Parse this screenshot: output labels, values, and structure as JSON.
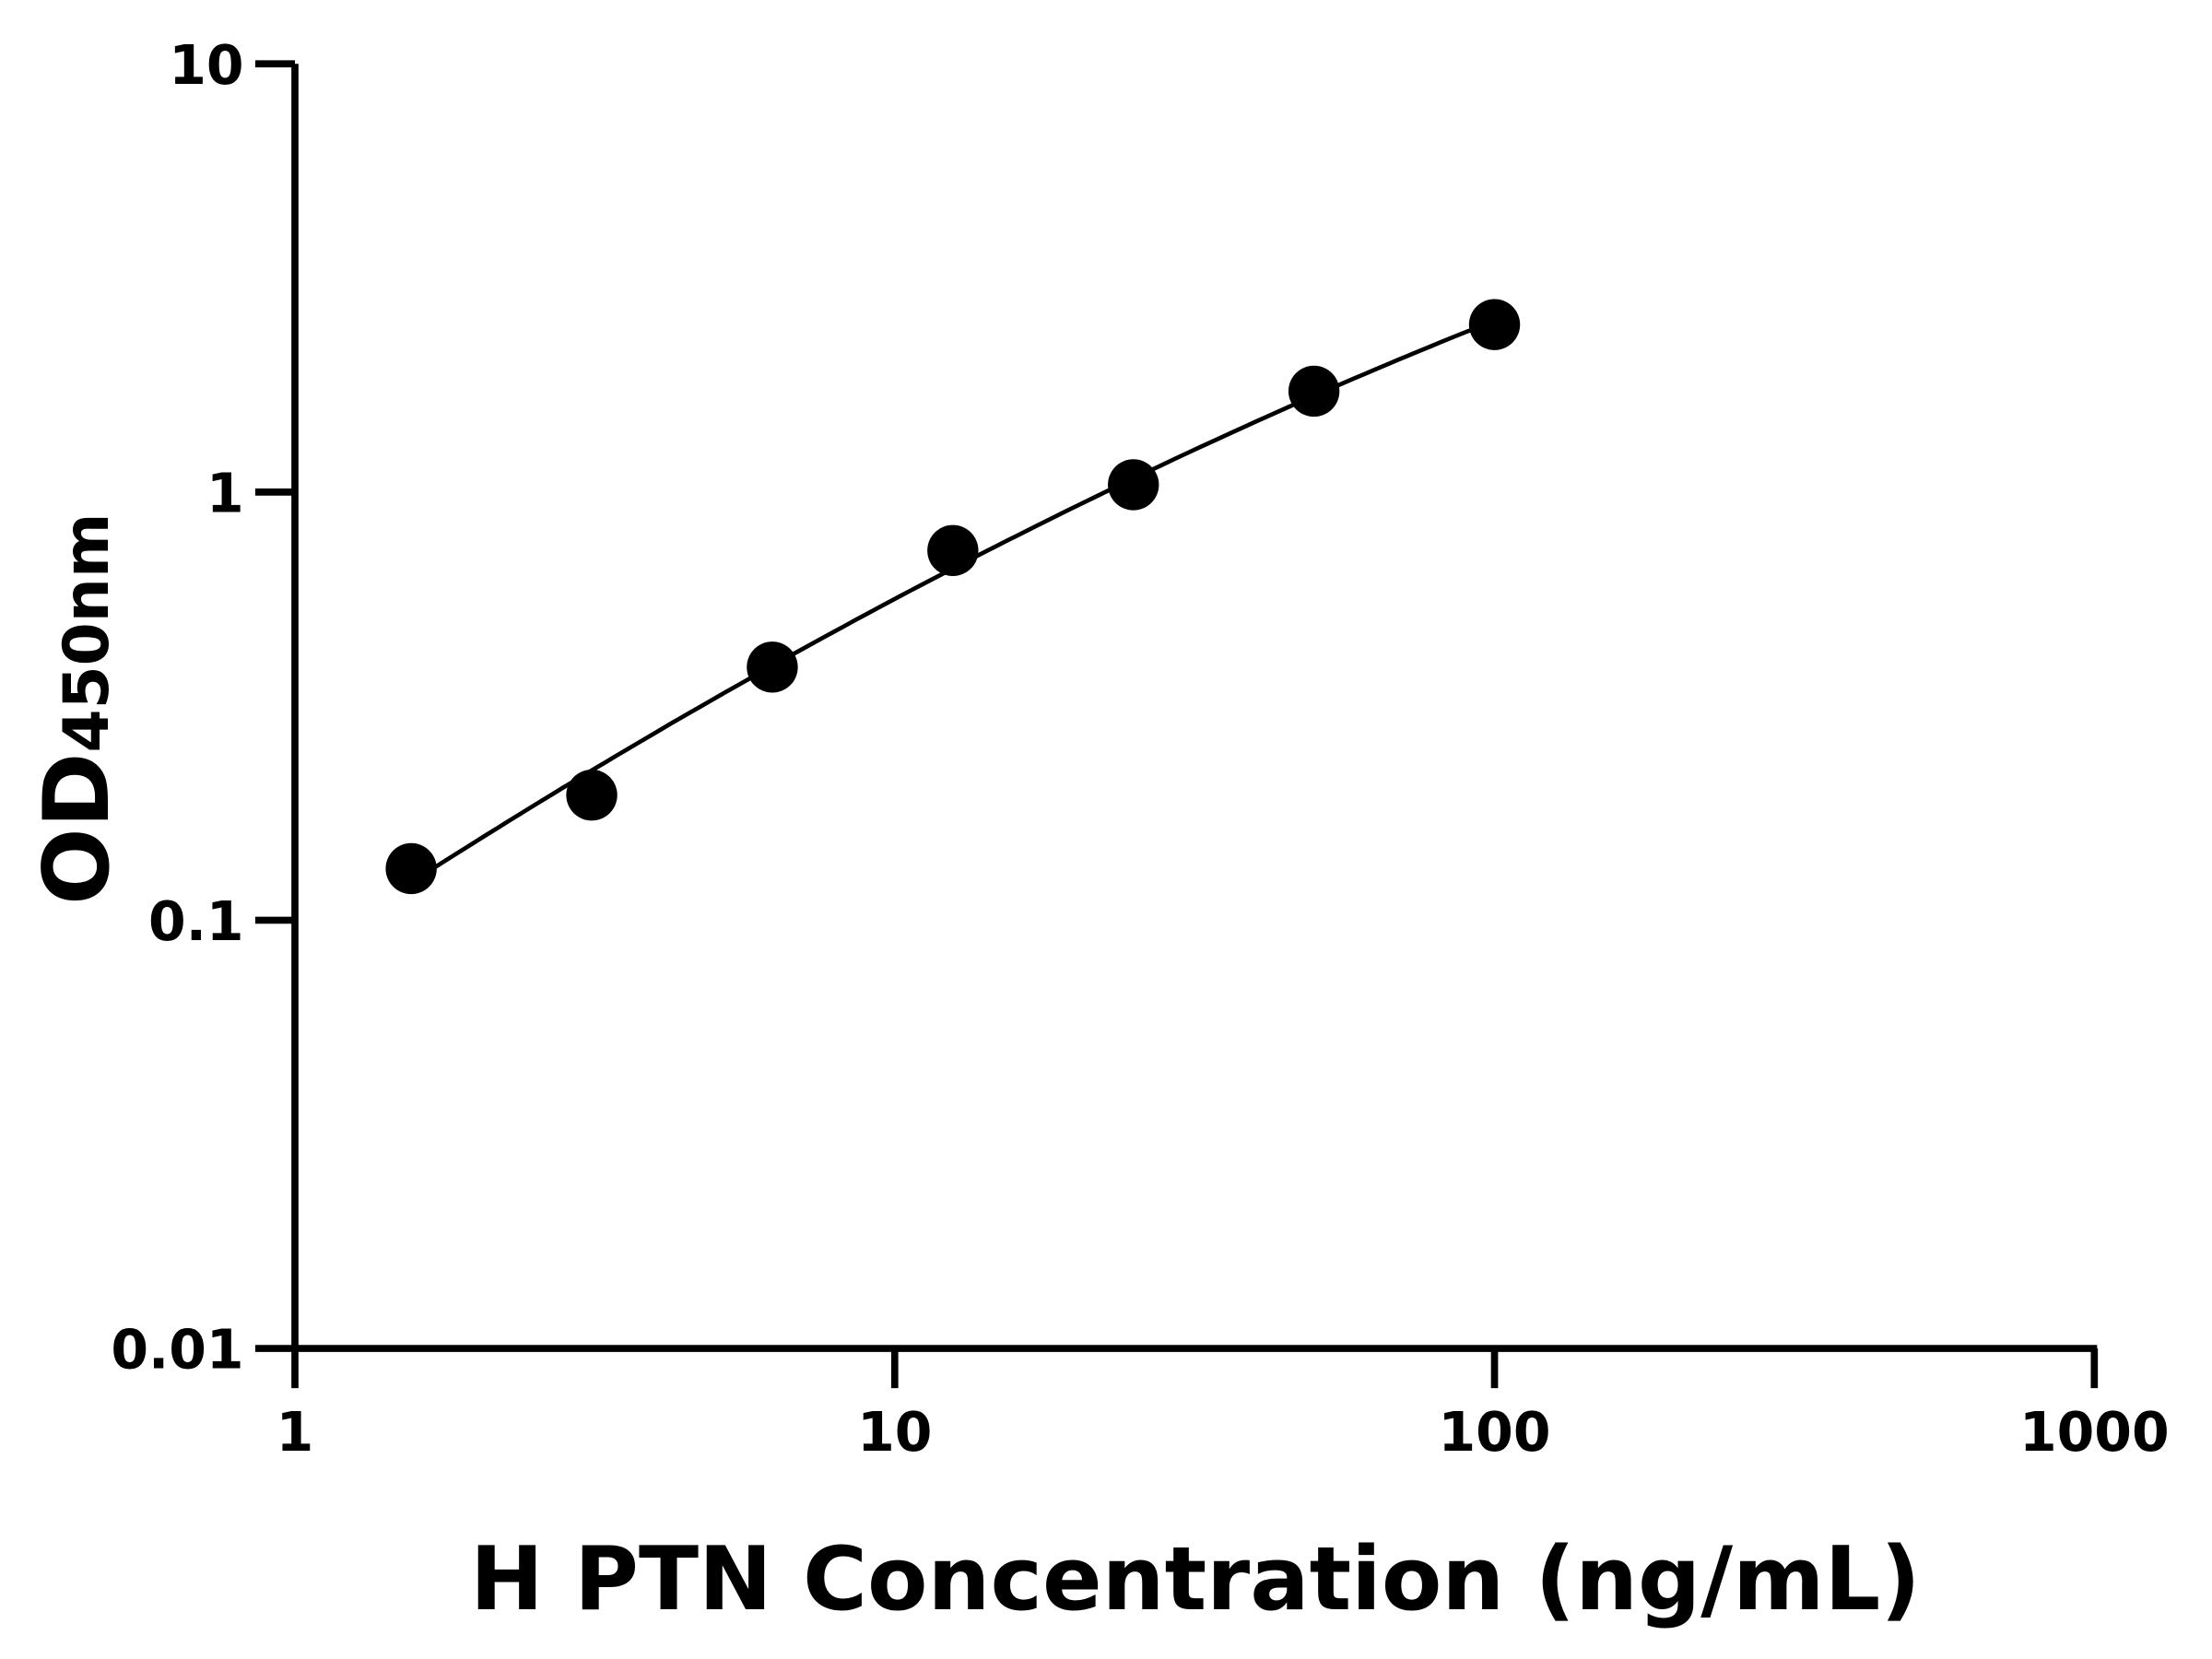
{
  "chart_data": {
    "type": "scatter",
    "title": "",
    "xlabel": "H PTN Concentration (ng/mL)",
    "ylabel_main": "OD",
    "ylabel_sub": "450nm",
    "x_scale": "log",
    "y_scale": "log",
    "xlim": [
      1,
      1000
    ],
    "ylim": [
      0.01,
      10
    ],
    "x_ticks": [
      "1",
      "10",
      "100",
      "1000"
    ],
    "y_ticks": [
      "0.01",
      "0.1",
      "1",
      "10"
    ],
    "grid": false,
    "legend": "none",
    "fit_curve": true,
    "color": "#000000",
    "series": [
      {
        "x": [
          1.5625,
          3.125,
          6.25,
          12.5,
          25,
          50,
          100
        ],
        "y": [
          0.132,
          0.196,
          0.39,
          0.73,
          1.04,
          1.72,
          2.46
        ]
      }
    ]
  }
}
